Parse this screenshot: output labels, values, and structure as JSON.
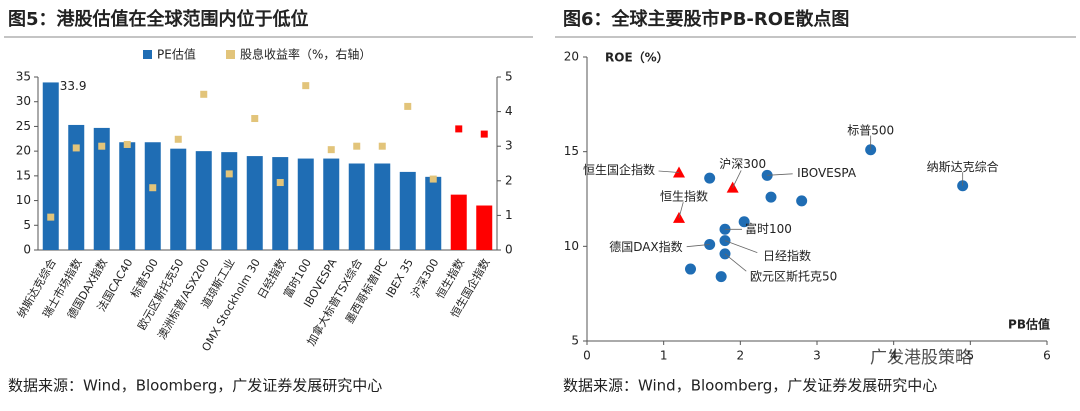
{
  "chart_data": [
    {
      "type": "bar",
      "title": "图5：港股估值在全球范围内位于低位",
      "categories": [
        "纳斯达克综合",
        "瑞士市场指数",
        "德国DAX指数",
        "法国CAC40",
        "标普500",
        "欧元区斯托克50",
        "澳洲标普/ASX200",
        "道琼斯工业",
        "OMX Stockholm 30",
        "日经指数",
        "富时100",
        "IBOVESPA",
        "加拿大标普TSX综合",
        "墨西哥标普IPC",
        "IBEX 35",
        "沪深300",
        "恒生指数",
        "恒生国企指数"
      ],
      "series": [
        {
          "name": "PE估值",
          "color": "#1f6db4",
          "point_colors": [
            "#1f6db4",
            "#1f6db4",
            "#1f6db4",
            "#1f6db4",
            "#1f6db4",
            "#1f6db4",
            "#1f6db4",
            "#1f6db4",
            "#1f6db4",
            "#1f6db4",
            "#1f6db4",
            "#1f6db4",
            "#1f6db4",
            "#1f6db4",
            "#1f6db4",
            "#1f6db4",
            "#ff0000",
            "#ff0000"
          ],
          "values": [
            33.9,
            25.3,
            24.7,
            21.8,
            21.8,
            20.5,
            20.0,
            19.8,
            19.0,
            18.8,
            18.5,
            18.5,
            17.5,
            17.5,
            15.8,
            14.8,
            11.2,
            9.0
          ],
          "value_labels": [
            "33.9",
            null,
            null,
            null,
            null,
            null,
            null,
            null,
            null,
            null,
            null,
            null,
            null,
            null,
            null,
            null,
            null,
            null
          ]
        },
        {
          "name": "股息收益率（%，右轴）",
          "type": "scatter",
          "axis": "y2",
          "color": "#e2c47a",
          "point_colors": [
            "#e2c47a",
            "#e2c47a",
            "#e2c47a",
            "#e2c47a",
            "#e2c47a",
            "#e2c47a",
            "#e2c47a",
            "#e2c47a",
            "#e2c47a",
            "#e2c47a",
            "#e2c47a",
            "#e2c47a",
            "#e2c47a",
            "#e2c47a",
            "#e2c47a",
            "#e2c47a",
            "#ff0000",
            "#ff0000"
          ],
          "values": [
            0.95,
            2.95,
            3.0,
            3.05,
            1.8,
            3.2,
            4.5,
            2.2,
            3.8,
            1.95,
            4.75,
            2.9,
            3.0,
            3.0,
            4.15,
            2.05,
            3.5,
            3.35
          ]
        }
      ],
      "ylim": [
        0,
        35
      ],
      "yticks": [
        0,
        5,
        10,
        15,
        20,
        25,
        30,
        35
      ],
      "y2lim": [
        0,
        5
      ],
      "y2ticks": [
        0,
        1,
        2,
        3,
        4,
        5
      ],
      "source": "数据来源：Wind，Bloomberg，广发证券发展研究中心"
    },
    {
      "type": "scatter",
      "title": "图6：全球主要股市PB-ROE散点图",
      "xlabel": "PB估值",
      "ylabel": "ROE（%）",
      "xlim": [
        0,
        6
      ],
      "xticks": [
        0,
        1,
        2,
        3,
        4,
        5,
        6
      ],
      "ylim": [
        5,
        20
      ],
      "yticks": [
        5,
        10,
        15,
        20
      ],
      "series": [
        {
          "color": "#1f6db4",
          "marker": "circle",
          "x": [
            3.7,
            4.9,
            1.6,
            2.35,
            2.4,
            2.8,
            2.05,
            1.8,
            1.8,
            1.6,
            1.8,
            1.35,
            1.75
          ],
          "y": [
            15.1,
            13.2,
            13.6,
            13.75,
            12.6,
            12.4,
            11.3,
            10.9,
            10.3,
            10.1,
            9.6,
            8.8,
            8.4
          ],
          "labels": [
            "标普500",
            "纳斯达克综合",
            null,
            "IBOVESPA",
            null,
            null,
            null,
            "富时100",
            "日经指数",
            "德国DAX指数",
            "欧元区斯托克50",
            null,
            null
          ]
        },
        {
          "color": "#ff0000",
          "marker": "triangle",
          "x": [
            1.2,
            1.2,
            1.9
          ],
          "y": [
            13.9,
            11.5,
            13.1
          ],
          "labels": [
            "恒生国企指数",
            "恒生指数",
            "沪深300"
          ]
        }
      ],
      "source": "数据来源：Wind，Bloomberg，广发证券发展研究中心",
      "watermark": "广发港股策略"
    }
  ]
}
